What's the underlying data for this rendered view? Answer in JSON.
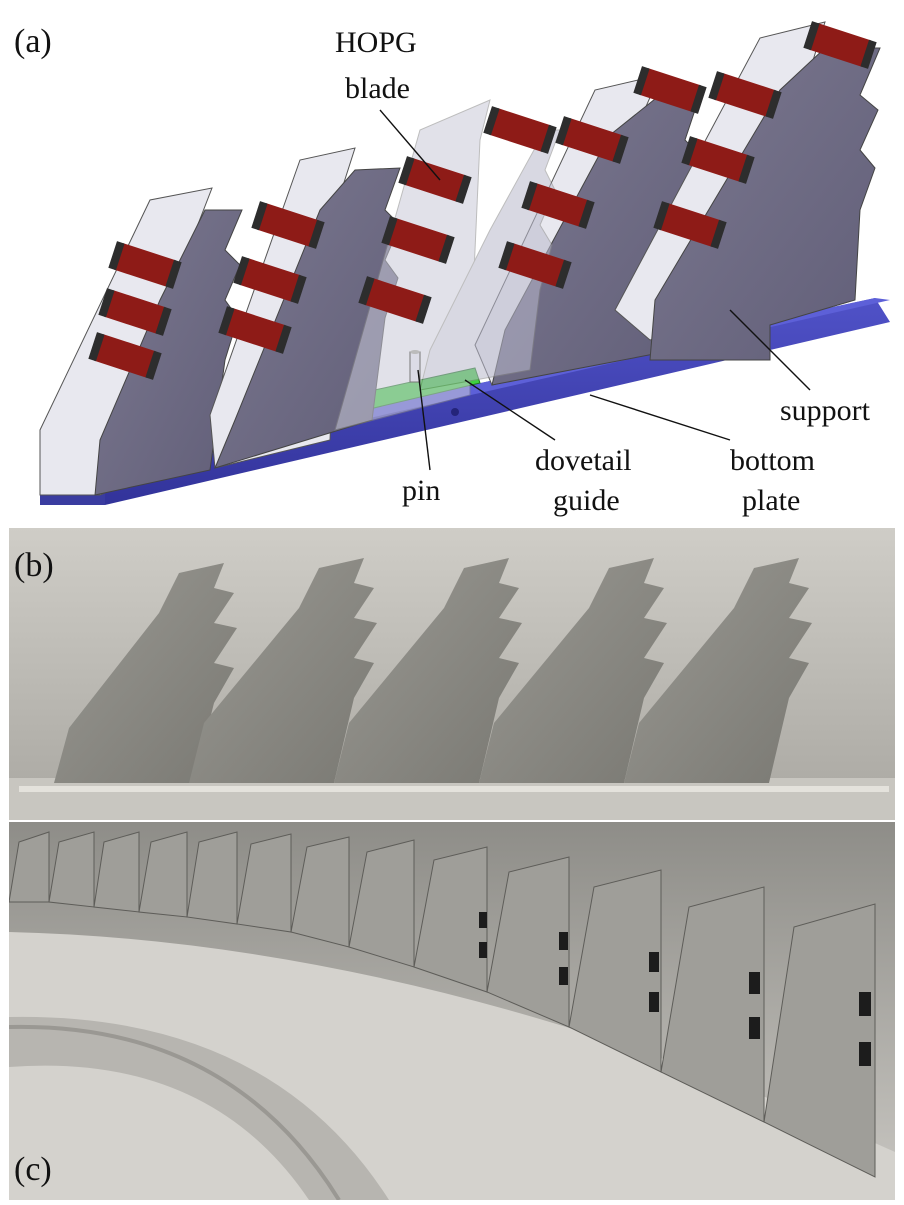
{
  "panel_labels": {
    "a": "(a)",
    "b": "(b)",
    "c": "(c)"
  },
  "callouts": {
    "hopg_line1": "HOPG",
    "hopg_line2": "blade",
    "support": "support",
    "pin": "pin",
    "dovetail_line1": "dovetail",
    "dovetail_line2": "guide",
    "bottom_line1": "bottom",
    "bottom_line2": "plate"
  },
  "colors": {
    "support_face": "#6f6c84",
    "support_edge": "#e6e6ee",
    "blade": "#8e1b17",
    "blade_end": "#2d2d2d",
    "bottom_plate": "#3c3ea8",
    "dovetail": "#3fd03f",
    "photo_metal": "#8b8a85",
    "photo_bg": "#bebcb6"
  }
}
